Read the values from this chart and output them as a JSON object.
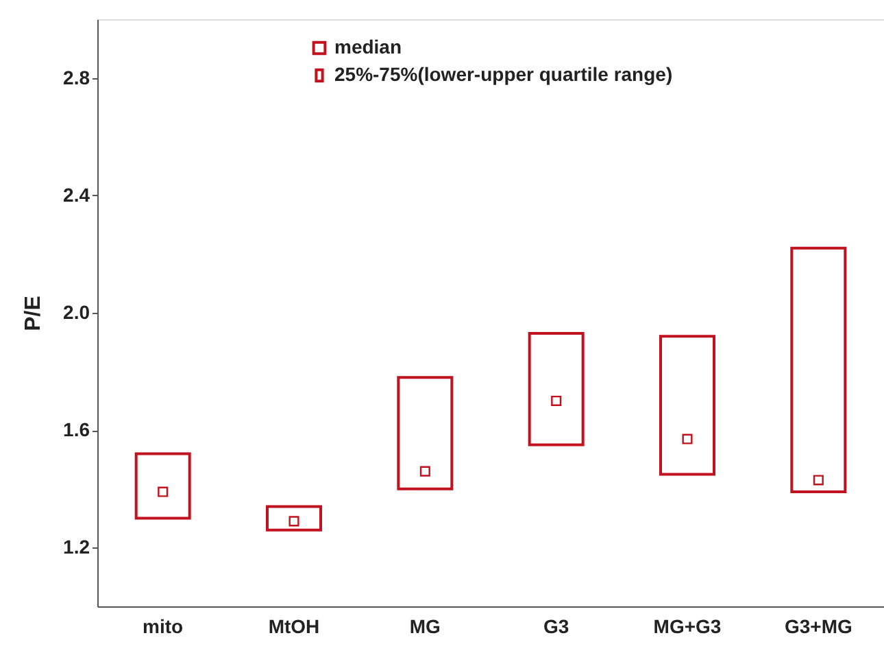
{
  "chart_data": {
    "type": "bar",
    "ylabel": "P/E",
    "categories": [
      "mito",
      "MtOH",
      "MG",
      "G3",
      "MG+G3",
      "G3+MG"
    ],
    "series": [
      {
        "name": "median",
        "type": "scatter",
        "marker": "square",
        "color": "#c1121f",
        "x": [
          "mito",
          "MtOH",
          "MG",
          "G3",
          "MG+G3",
          "G3+MG"
        ],
        "values": [
          1.39,
          1.29,
          1.46,
          1.7,
          1.57,
          1.43
        ]
      },
      {
        "name": "25%-75%(lower-upper quartile range)",
        "type": "bar",
        "color": "#c1121f",
        "base": [
          1.3,
          1.26,
          1.4,
          1.55,
          1.45,
          1.39
        ],
        "values": [
          0.22,
          0.08,
          0.38,
          0.38,
          0.47,
          0.83
        ]
      }
    ],
    "ylim": [
      1.0,
      3.0
    ],
    "yticks": [
      1.2,
      1.6,
      {
        "value": 2.0,
        "label": "2.0"
      },
      2.4,
      2.8
    ],
    "grid": false,
    "legend": "top"
  }
}
